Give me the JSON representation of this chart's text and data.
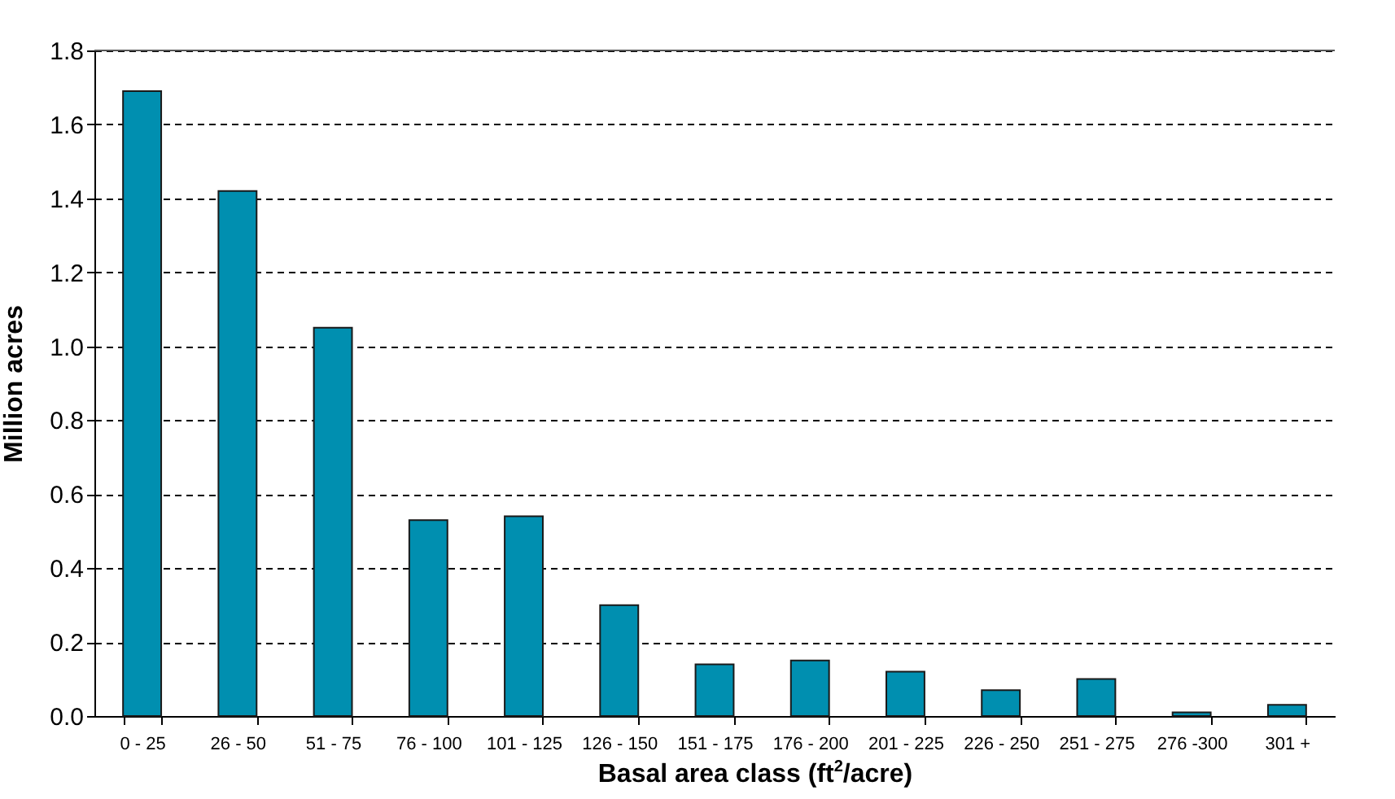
{
  "chart_data": {
    "type": "bar",
    "xlabel": "Basal area class (ft$^{2}$/acre)",
    "ylabel": "Million acres",
    "categories": [
      "0 - 25",
      "26 - 50",
      "51 - 75",
      "76 - 100",
      "101 - 125",
      "126 - 150",
      "151 - 175",
      "176 - 200",
      "201 - 225",
      "226 - 250",
      "251 - 275",
      "276 -300",
      "301 +"
    ],
    "values": [
      1.69,
      1.42,
      1.05,
      0.53,
      0.54,
      0.3,
      0.14,
      0.15,
      0.12,
      0.07,
      0.1,
      0.01,
      0.03
    ],
    "color": "#008fb0",
    "ylim": [
      0,
      1.8
    ],
    "yticks": [
      {
        "value": 0,
        "label": "0.0"
      },
      {
        "value": 0.2,
        "label": "0.2"
      },
      {
        "value": 0.4,
        "label": "0.4"
      },
      {
        "value": 0.6,
        "label": "0.6"
      },
      {
        "value": 0.8,
        "label": "0.8"
      },
      {
        "value": 1,
        "label": "1.0"
      },
      {
        "value": 1.2,
        "label": "1.2"
      },
      {
        "value": 1.4,
        "label": "1.4"
      },
      {
        "value": 1.6,
        "label": "1.6"
      },
      {
        "value": 1.8,
        "label": "1.8"
      }
    ],
    "grid": "y"
  }
}
